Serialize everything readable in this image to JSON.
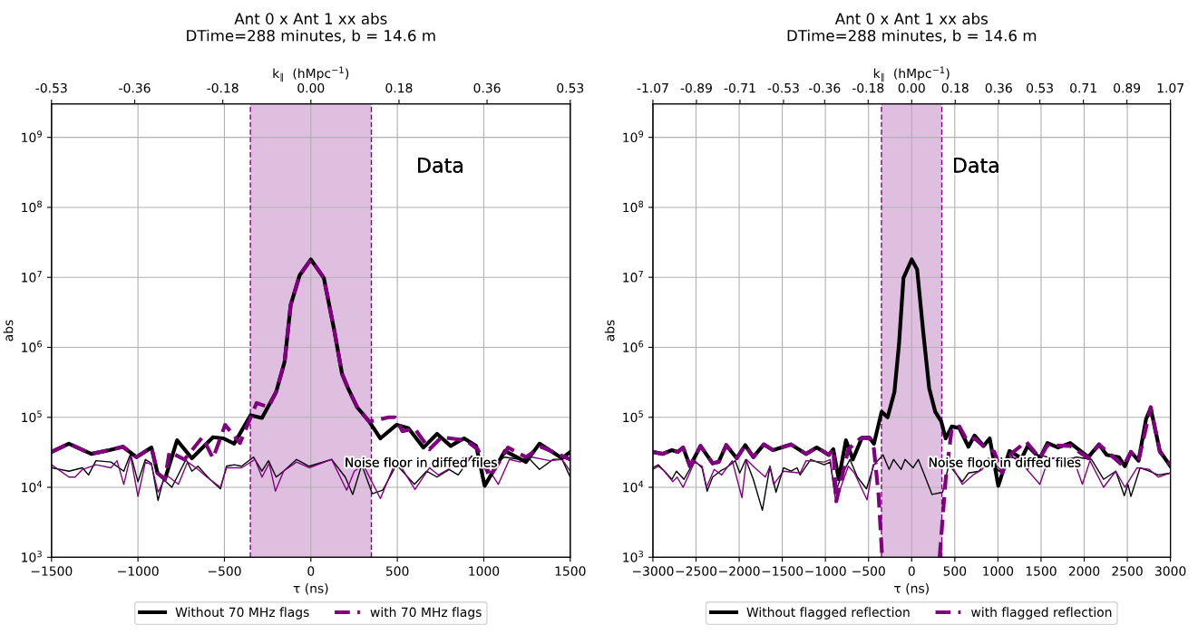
{
  "chart_data": [
    {
      "type": "line",
      "title": "Ant 0 x Ant 1 xx abs\nDTime=288 minutes, b = 14.6 m",
      "xlabel": "τ (ns)",
      "ylabel": "abs",
      "x2label": "k$_{∥}$  (hMpc$^{−1}$)",
      "log": "y",
      "grid": true,
      "legend": "bottom",
      "xlim": [
        -1500,
        1500
      ],
      "xticks": [
        {
          "value": -1500,
          "label": "−1500"
        },
        {
          "value": -1000,
          "label": "−1000"
        },
        {
          "value": -500,
          "label": "−500"
        },
        0,
        500,
        1000,
        1500
      ],
      "x2lim": [
        -0.53,
        0.53
      ],
      "x2ticks": [
        {
          "value": -0.53,
          "label": "-0.53"
        },
        {
          "value": -0.36,
          "label": "-0.36"
        },
        {
          "value": -0.18,
          "label": "-0.18"
        },
        {
          "value": 0,
          "label": "0.00"
        },
        {
          "value": 0.18,
          "label": "0.18"
        },
        {
          "value": 0.36,
          "label": "0.36"
        },
        {
          "value": 0.53,
          "label": "0.53"
        }
      ],
      "ylim": [
        1000,
        3000000000
      ],
      "yticks": [
        {
          "value": 1000,
          "label": "10$^{3}$"
        },
        {
          "value": 10000,
          "label": "10$^{4}$"
        },
        {
          "value": 100000,
          "label": "10$^{5}$"
        },
        {
          "value": 1000000,
          "label": "10$^{6}$"
        },
        {
          "value": 10000000,
          "label": "10$^{7}$"
        },
        {
          "value": 100000000,
          "label": "10$^{8}$"
        },
        {
          "value": 1000000000,
          "label": "10$^{9}$"
        }
      ],
      "bands": [
        {
          "axis": "x",
          "from": -350,
          "to": 350,
          "color": "#dfbfdf"
        }
      ],
      "ref_lines": [
        {
          "axis": "x",
          "value": -350,
          "color": "#800080",
          "line_style": "dashed"
        },
        {
          "axis": "x",
          "value": 350,
          "color": "#800080",
          "line_style": "dashed"
        }
      ],
      "annotations": [
        "Data",
        "Noise floor in diffed files"
      ],
      "series": [
        {
          "name": "Without 70 MHz flags",
          "color": "#000000",
          "line_style": "solid",
          "x": [
            -1500,
            -1400,
            -1270,
            -1165,
            -1087,
            -1009,
            -922,
            -887,
            -844,
            -774,
            -688,
            -566,
            -505,
            -444,
            -349,
            -283,
            -201,
            -152,
            -117,
            -65,
            0,
            75,
            136,
            180,
            215,
            267,
            337,
            402,
            495,
            564,
            651,
            730,
            808,
            886,
            956,
            1005,
            1122,
            1244,
            1322,
            1453,
            1500
          ],
          "values": [
            32000.0,
            42000.0,
            30000.0,
            34000.0,
            38000.0,
            27000.0,
            37000.0,
            16000.0,
            13000.0,
            47000.0,
            26000.0,
            52000.0,
            50000.0,
            42000.0,
            107000.0,
            98000.0,
            230000.0,
            620000.0,
            4000000.0,
            10700000.0,
            18000000.0,
            9800000.0,
            1700000.0,
            420000.0,
            260000.0,
            140000.0,
            87000.0,
            50000.0,
            78000.0,
            70000.0,
            37000.0,
            58000.0,
            39000.0,
            50000.0,
            39000.0,
            10500.0,
            33000.0,
            23000.0,
            42000.0,
            26000.0,
            32000.0
          ]
        },
        {
          "name": "with 70 MHz flags",
          "color": "#800080",
          "line_style": "dashed",
          "x": [
            -1500,
            -1400,
            -1270,
            -1165,
            -1087,
            -1009,
            -922,
            -887,
            -844,
            -818,
            -731,
            -627,
            -566,
            -496,
            -410,
            -314,
            -245,
            -201,
            -152,
            -117,
            -65,
            0,
            75,
            136,
            180,
            215,
            267,
            337,
            451,
            486,
            530,
            599,
            686,
            756,
            895,
            965,
            1035,
            1140,
            1244,
            1331,
            1500
          ],
          "values": [
            32000.0,
            42000.0,
            30000.0,
            34000.0,
            38000.0,
            27000.0,
            37000.0,
            16000.0,
            13000.0,
            32000.0,
            25000.0,
            52000.0,
            26000.0,
            78000.0,
            43000.0,
            160000.0,
            140000.0,
            230000.0,
            620000.0,
            4000000.0,
            10700000.0,
            18000000.0,
            9800000.0,
            1700000.0,
            420000.0,
            260000.0,
            140000.0,
            87000.0,
            100000.0,
            100000.0,
            63000.0,
            70000.0,
            35000.0,
            52000.0,
            47000.0,
            35000.0,
            14000.0,
            37000.0,
            27000.0,
            38000.0,
            25000.0
          ]
        },
        {
          "color": "#000000",
          "line_style": "solid",
          "x": [
            -1500,
            -1399,
            -1321,
            -1286,
            -1243,
            -1156,
            -1082,
            -1043,
            -1000,
            -957,
            -922,
            -884,
            -853,
            -804,
            -722,
            -688,
            -653,
            -584,
            -523,
            -488,
            -444,
            -401,
            -332,
            -283,
            -245,
            -201,
            -158,
            -83,
            -10,
            120,
            199,
            242,
            294,
            355,
            416,
            495,
            599,
            669,
            730,
            800,
            852,
            930,
            982,
            1035,
            1122,
            1209,
            1261,
            1322,
            1401,
            1453,
            1500
          ],
          "values": [
            19000.0,
            17000.0,
            19000.0,
            15000.0,
            24000.0,
            23000.0,
            17000.0,
            30000.0,
            12000.0,
            25000.0,
            22000.0,
            6500.0,
            13000.0,
            10000.0,
            25000.0,
            17000.0,
            20000.0,
            13000.0,
            9500.0,
            20000.0,
            21000.0,
            20000.0,
            27000.0,
            17000.0,
            24000.0,
            14000.0,
            17000.0,
            25000.0,
            20000.0,
            25000.0,
            14000.0,
            7900.0,
            21000.0,
            8100.0,
            9100.0,
            21000.0,
            11000.0,
            17000.0,
            14000.0,
            18000.0,
            15000.0,
            28000.0,
            20000.0,
            21000.0,
            27000.0,
            25000.0,
            26000.0,
            18000.0,
            25000.0,
            25000.0,
            14000.0
          ]
        },
        {
          "color": "#800080",
          "line_style": "solid",
          "x": [
            -1500,
            -1399,
            -1364,
            -1321,
            -1243,
            -1156,
            -1121,
            -1082,
            -1043,
            -1000,
            -957,
            -922,
            -884,
            -835,
            -766,
            -713,
            -653,
            -601,
            -523,
            -488,
            -401,
            -323,
            -283,
            -241,
            -205,
            -158,
            -83,
            -10,
            120,
            207,
            251,
            303,
            402,
            495,
            602,
            686,
            738,
            808,
            886,
            947,
            1017,
            1084,
            1148,
            1209,
            1279,
            1383,
            1453,
            1500
          ],
          "values": [
            21000.0,
            14000.0,
            14000.0,
            18000.0,
            21000.0,
            19000.0,
            24000.0,
            11000.0,
            28000.0,
            7400.0,
            23000.0,
            21000.0,
            8500.0,
            15000.0,
            11000.0,
            23000.0,
            18000.0,
            14000.0,
            10000.0,
            19000.0,
            19000.0,
            25000.0,
            14000.0,
            22000.0,
            8800.0,
            17000.0,
            23000.0,
            19000.0,
            25000.0,
            9100.0,
            17000.0,
            21000.0,
            6900.0,
            25000.0,
            9300.0,
            19000.0,
            15000.0,
            19000.0,
            27000.0,
            25000.0,
            20000.0,
            11000.0,
            25000.0,
            23000.0,
            27000.0,
            24000.0,
            25000.0,
            17000.0
          ]
        }
      ]
    },
    {
      "type": "line",
      "title": "Ant 0 x Ant 1 xx abs\nDTime=288 minutes, b = 14.6 m",
      "xlabel": "τ (ns)",
      "ylabel": "abs",
      "x2label": "k$_{∥}$  (hMpc$^{−1}$)",
      "log": "y",
      "grid": true,
      "legend": "bottom",
      "xlim": [
        -3000,
        3000
      ],
      "xticks": [
        {
          "value": -3000,
          "label": "−3000"
        },
        {
          "value": -2500,
          "label": "−2500"
        },
        {
          "value": -2000,
          "label": "−2000"
        },
        {
          "value": -1500,
          "label": "−1500"
        },
        {
          "value": -1000,
          "label": "−1000"
        },
        {
          "value": -500,
          "label": "−500"
        },
        0,
        500,
        1000,
        1500,
        2000,
        2500,
        3000
      ],
      "x2lim": [
        -1.07,
        1.07
      ],
      "x2ticks": [
        {
          "value": -1.07,
          "label": "-1.07"
        },
        {
          "value": -0.89,
          "label": "-0.89"
        },
        {
          "value": -0.71,
          "label": "-0.71"
        },
        {
          "value": -0.53,
          "label": "-0.53"
        },
        {
          "value": -0.36,
          "label": "-0.36"
        },
        {
          "value": -0.18,
          "label": "-0.18"
        },
        {
          "value": 0,
          "label": "0.00"
        },
        {
          "value": 0.18,
          "label": "0.18"
        },
        {
          "value": 0.36,
          "label": "0.36"
        },
        {
          "value": 0.53,
          "label": "0.53"
        },
        {
          "value": 0.71,
          "label": "0.71"
        },
        {
          "value": 0.89,
          "label": "0.89"
        },
        {
          "value": 1.07,
          "label": "1.07"
        }
      ],
      "ylim": [
        1000,
        3000000000
      ],
      "yticks": [
        {
          "value": 1000,
          "label": "10$^{3}$"
        },
        {
          "value": 10000,
          "label": "10$^{4}$"
        },
        {
          "value": 100000,
          "label": "10$^{5}$"
        },
        {
          "value": 1000000,
          "label": "10$^{6}$"
        },
        {
          "value": 10000000,
          "label": "10$^{7}$"
        },
        {
          "value": 100000000,
          "label": "10$^{8}$"
        },
        {
          "value": 1000000000,
          "label": "10$^{9}$"
        }
      ],
      "bands": [
        {
          "axis": "x",
          "from": -350,
          "to": 350,
          "color": "#dfbfdf"
        }
      ],
      "ref_lines": [
        {
          "axis": "x",
          "value": -350,
          "color": "#800080",
          "line_style": "dashed"
        },
        {
          "axis": "x",
          "value": 350,
          "color": "#800080",
          "line_style": "dashed"
        }
      ],
      "annotations": [
        "Data",
        "Noise floor in diffed files"
      ],
      "series": [
        {
          "name": "Without flagged reflection",
          "color": "#000000",
          "line_style": "solid",
          "x": [
            -3000,
            -2885,
            -2780,
            -2710,
            -2650,
            -2570,
            -2448,
            -2308,
            -2238,
            -2150,
            -2028,
            -1930,
            -1836,
            -1713,
            -1608,
            -1398,
            -1224,
            -1101,
            -1031,
            -961,
            -909,
            -846,
            -762,
            -682,
            -577,
            -489,
            -437,
            -349,
            -279,
            -200,
            -147,
            -95,
            0,
            63,
            133,
            203,
            273,
            343,
            394,
            465,
            553,
            658,
            729,
            834,
            905,
            1004,
            1134,
            1275,
            1345,
            1486,
            1574,
            1697,
            1838,
            2049,
            2172,
            2261,
            2401,
            2472,
            2542,
            2630,
            2718,
            2771,
            2877,
            3000
          ],
          "values": [
            32000.0,
            30000.0,
            34000.0,
            32000.0,
            37000.0,
            20000.0,
            39000.0,
            22000.0,
            23000.0,
            40000.0,
            26000.0,
            40000.0,
            27000.0,
            41000.0,
            34000.0,
            41000.0,
            30000.0,
            37000.0,
            33000.0,
            29000.0,
            35000.0,
            13000.0,
            47000.0,
            25000.0,
            51000.0,
            51000.0,
            42000.0,
            120000.0,
            100000.0,
            230000.0,
            1100000.0,
            9800000.0,
            18000000.0,
            13000000.0,
            1700000.0,
            260000.0,
            120000.0,
            87000.0,
            50000.0,
            74000.0,
            70000.0,
            38000.0,
            55000.0,
            39000.0,
            50000.0,
            10500.0,
            33000.0,
            26000.0,
            39000.0,
            26000.0,
            43000.0,
            37000.0,
            43000.0,
            27000.0,
            41000.0,
            29000.0,
            27000.0,
            20000.0,
            32000.0,
            24000.0,
            95000.0,
            135000.0,
            33000.0,
            20000.0
          ]
        },
        {
          "name": "with flagged reflection",
          "color": "#800080",
          "line_style": "dashed",
          "x": [
            -3000,
            -2885,
            -2780,
            -2710,
            -2650,
            -2570,
            -2448,
            -2308,
            -2238,
            -2150,
            -2028,
            -1930,
            -1836,
            -1713,
            -1608,
            -1398,
            -1224,
            -1101,
            -1031,
            -961,
            -909,
            -874,
            -734,
            -594,
            -489,
            -437,
            -384,
            -342,
            0,
            324,
            394,
            465,
            553,
            641,
            729,
            852,
            958,
            1046,
            1151,
            1327,
            1486,
            1574,
            1838,
            2049,
            2172,
            2454,
            2542,
            2630,
            2771,
            2877,
            3000
          ],
          "values": [
            32000.0,
            30000.0,
            34000.0,
            32000.0,
            37000.0,
            20000.0,
            39000.0,
            22000.0,
            23000.0,
            40000.0,
            26000.0,
            40000.0,
            27000.0,
            41000.0,
            34000.0,
            41000.0,
            30000.0,
            37000.0,
            33000.0,
            29000.0,
            35000.0,
            6300.0,
            35000.0,
            50000.0,
            51000.0,
            35000.0,
            7800.0,
            1000.0,
            null,
            1000.0,
            13000.0,
            70000.0,
            74000.0,
            47000.0,
            50000.0,
            37000.0,
            32000.0,
            16000.0,
            30000.0,
            45000.0,
            26000.0,
            40000.0,
            39000.0,
            26000.0,
            41000.0,
            20000.0,
            32000.0,
            24000.0,
            140000.0,
            32000.0,
            21000.0
          ]
        },
        {
          "color": "#000000",
          "line_style": "solid",
          "x": [
            -3000,
            -2937,
            -2867,
            -2780,
            -2727,
            -2640,
            -2517,
            -2430,
            -2371,
            -2308,
            -2220,
            -2150,
            -2045,
            -1993,
            -1923,
            -1836,
            -1731,
            -1643,
            -1573,
            -1486,
            -1398,
            -1328,
            -1293,
            -1171,
            -1014,
            -944,
            -891,
            -821,
            -716,
            -629,
            -524,
            -437,
            -332,
            -262,
            -210,
            -122,
            -77,
            17,
            77,
            236,
            359,
            430,
            588,
            658,
            781,
            887,
            1011,
            1134,
            1345,
            1486,
            1627,
            1768,
            1909,
            2085,
            2225,
            2366,
            2465,
            2507,
            2542,
            2648,
            2754,
            2859,
            3000
          ],
          "values": [
            19000.0,
            21000.0,
            17000.0,
            13000.0,
            17000.0,
            13000.0,
            24000.0,
            19000.0,
            8800.0,
            14000.0,
            17000.0,
            19000.0,
            24000.0,
            16000.0,
            25000.0,
            13000.0,
            4700.0,
            20000.0,
            8500.0,
            19000.0,
            17000.0,
            19000.0,
            15000.0,
            25000.0,
            21000.0,
            23000.0,
            7800.0,
            14000.0,
            25000.0,
            14000.0,
            9500.0,
            21000.0,
            29000.0,
            18000.0,
            25000.0,
            18000.0,
            25000.0,
            19000.0,
            25000.0,
            7900.0,
            8500.0,
            21000.0,
            12000.0,
            16000.0,
            17000.0,
            26000.0,
            17000.0,
            30000.0,
            18000.0,
            29000.0,
            26000.0,
            24000.0,
            27000.0,
            25000.0,
            13000.0,
            17000.0,
            7600.0,
            11000.0,
            7400.0,
            19000.0,
            17000.0,
            15000.0,
            16000.0
          ]
        },
        {
          "color": "#800080",
          "line_style": "solid",
          "x": [
            -3000,
            -2937,
            -2867,
            -2769,
            -2720,
            -2650,
            -2517,
            -2430,
            -2378,
            -2290,
            -2203,
            -2080,
            -1968,
            -1916,
            -1818,
            -1696,
            -1643,
            -1601,
            -1486,
            -1293,
            -1224,
            -1014,
            -944,
            -881,
            -734,
            -664,
            -517,
            -447,
            -402,
            0,
            430,
            588,
            711,
            817,
            905,
            1028,
            1134,
            1222,
            1486,
            1592,
            1715,
            1873,
            1979,
            2067,
            2225,
            2366,
            2472,
            2613,
            2754,
            2859,
            3000
          ],
          "values": [
            18000.0,
            20000.0,
            17000.0,
            12000.0,
            14000.0,
            10000.0,
            23000.0,
            20000.0,
            10000.0,
            18000.0,
            15000.0,
            24000.0,
            7100.0,
            25000.0,
            19000.0,
            14000.0,
            20000.0,
            11000.0,
            17000.0,
            16000.0,
            24000.0,
            23000.0,
            25000.0,
            6300.0,
            20000.0,
            16000.0,
            6600.0,
            21000.0,
            22000.0,
            null,
            24000.0,
            11000.0,
            15000.0,
            18000.0,
            25000.0,
            18000.0,
            27000.0,
            26000.0,
            11000.0,
            27000.0,
            25000.0,
            26000.0,
            11000.0,
            24000.0,
            10000.0,
            17000.0,
            10000.0,
            19000.0,
            18000.0,
            14000.0,
            16000.0
          ]
        }
      ]
    }
  ]
}
